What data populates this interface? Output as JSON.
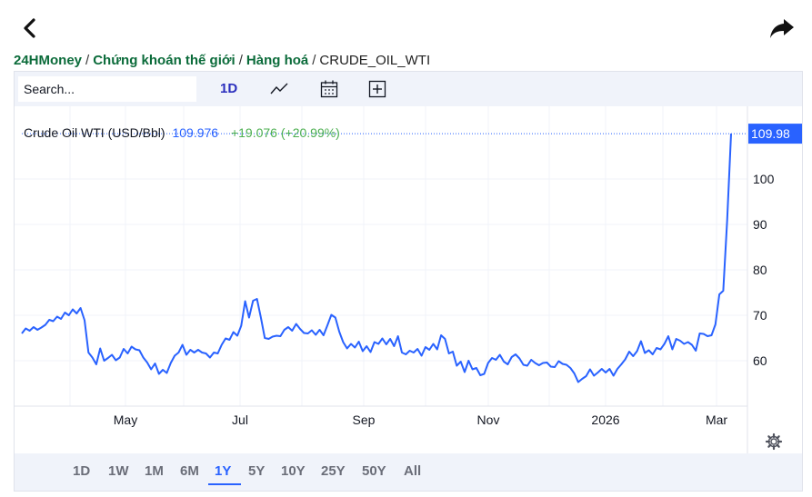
{
  "nav": {
    "back_icon": "chevron-left-icon",
    "share_icon": "share-arrow-icon"
  },
  "breadcrumb": {
    "items": [
      {
        "label": "24HMoney",
        "link": true
      },
      {
        "label": "Chứng khoán thế giới",
        "link": true
      },
      {
        "label": "Hàng hoá",
        "link": true
      },
      {
        "label": "CRUDE_OIL_WTI",
        "link": false
      }
    ],
    "separator": "/"
  },
  "toolbar": {
    "search_placeholder": "Search...",
    "interval": "1D",
    "icons": [
      "line-chart-icon",
      "calendar-icon",
      "add-indicator-icon"
    ]
  },
  "legend": {
    "name": "Crude Oil WTI (USD/Bbl)",
    "price": "109.976",
    "change": "+19.076 (+20.99%)"
  },
  "ranges": {
    "items": [
      "1D",
      "1W",
      "1M",
      "6M",
      "1Y",
      "5Y",
      "10Y",
      "25Y",
      "50Y",
      "All"
    ],
    "active": "1Y"
  },
  "colors": {
    "line": "#2962ff",
    "last_price_bg": "#2962ff",
    "positive": "#4caf50",
    "breadcrumb_link": "#0b6b3a"
  },
  "chart_data": {
    "type": "line",
    "x_tick_labels": [
      "May",
      "Jul",
      "Sep",
      "Nov",
      "2026",
      "Mar"
    ],
    "y_tick_labels": [
      "60",
      "70",
      "80",
      "90",
      "100"
    ],
    "ylim": [
      50,
      116
    ],
    "last_price_label": "109.98",
    "settings_icon": "gear-icon",
    "series": [
      {
        "values": [
          66.0,
          67.1,
          66.6,
          67.4,
          66.8,
          67.3,
          67.9,
          69.0,
          68.7,
          69.7,
          69.2,
          70.6,
          70.0,
          71.3,
          70.4,
          71.6,
          68.9,
          61.8,
          60.7,
          59.2,
          62.7,
          60.0,
          60.6,
          61.3,
          60.1,
          60.7,
          62.6,
          61.6,
          63.1,
          62.5,
          62.3,
          60.7,
          59.6,
          58.1,
          59.4,
          57.1,
          58.0,
          57.3,
          59.5,
          61.1,
          61.8,
          63.5,
          61.3,
          62.4,
          61.8,
          62.4,
          61.8,
          61.6,
          60.7,
          61.8,
          61.6,
          63.5,
          64.9,
          64.6,
          66.3,
          65.5,
          67.7,
          73.1,
          69.5,
          73.2,
          73.6,
          69.5,
          65.0,
          64.8,
          65.3,
          65.5,
          65.4,
          66.8,
          67.4,
          66.6,
          68.1,
          67.0,
          66.1,
          66.0,
          66.7,
          65.7,
          66.8,
          65.6,
          67.8,
          70.1,
          69.5,
          66.4,
          64.1,
          62.7,
          63.7,
          62.9,
          64.2,
          62.1,
          63.2,
          61.9,
          64.1,
          63.7,
          64.9,
          63.6,
          64.8,
          63.2,
          65.4,
          61.8,
          61.4,
          62.2,
          61.8,
          62.6,
          61.1,
          63.0,
          62.4,
          63.7,
          62.5,
          65.6,
          64.8,
          61.6,
          62.0,
          58.9,
          59.8,
          57.5,
          60.0,
          58.1,
          58.4,
          56.8,
          57.1,
          59.5,
          60.6,
          60.2,
          61.3,
          59.8,
          59.2,
          60.8,
          61.4,
          60.5,
          59.1,
          58.9,
          60.2,
          59.5,
          59.0,
          59.5,
          59.6,
          58.7,
          58.6,
          59.9,
          59.3,
          59.1,
          58.4,
          57.2,
          55.3,
          56.0,
          56.6,
          58.1,
          56.7,
          57.4,
          58.2,
          57.4,
          58.2,
          56.7,
          58.2,
          59.2,
          60.3,
          62.0,
          61.0,
          62.1,
          64.3,
          61.7,
          62.3,
          61.4,
          62.8,
          62.5,
          63.7,
          65.4,
          62.5,
          64.8,
          64.4,
          63.7,
          64.1,
          63.5,
          62.2,
          66.0,
          65.9,
          65.4,
          65.6,
          68.0,
          74.6,
          75.4,
          90.9,
          109.98
        ]
      }
    ]
  }
}
